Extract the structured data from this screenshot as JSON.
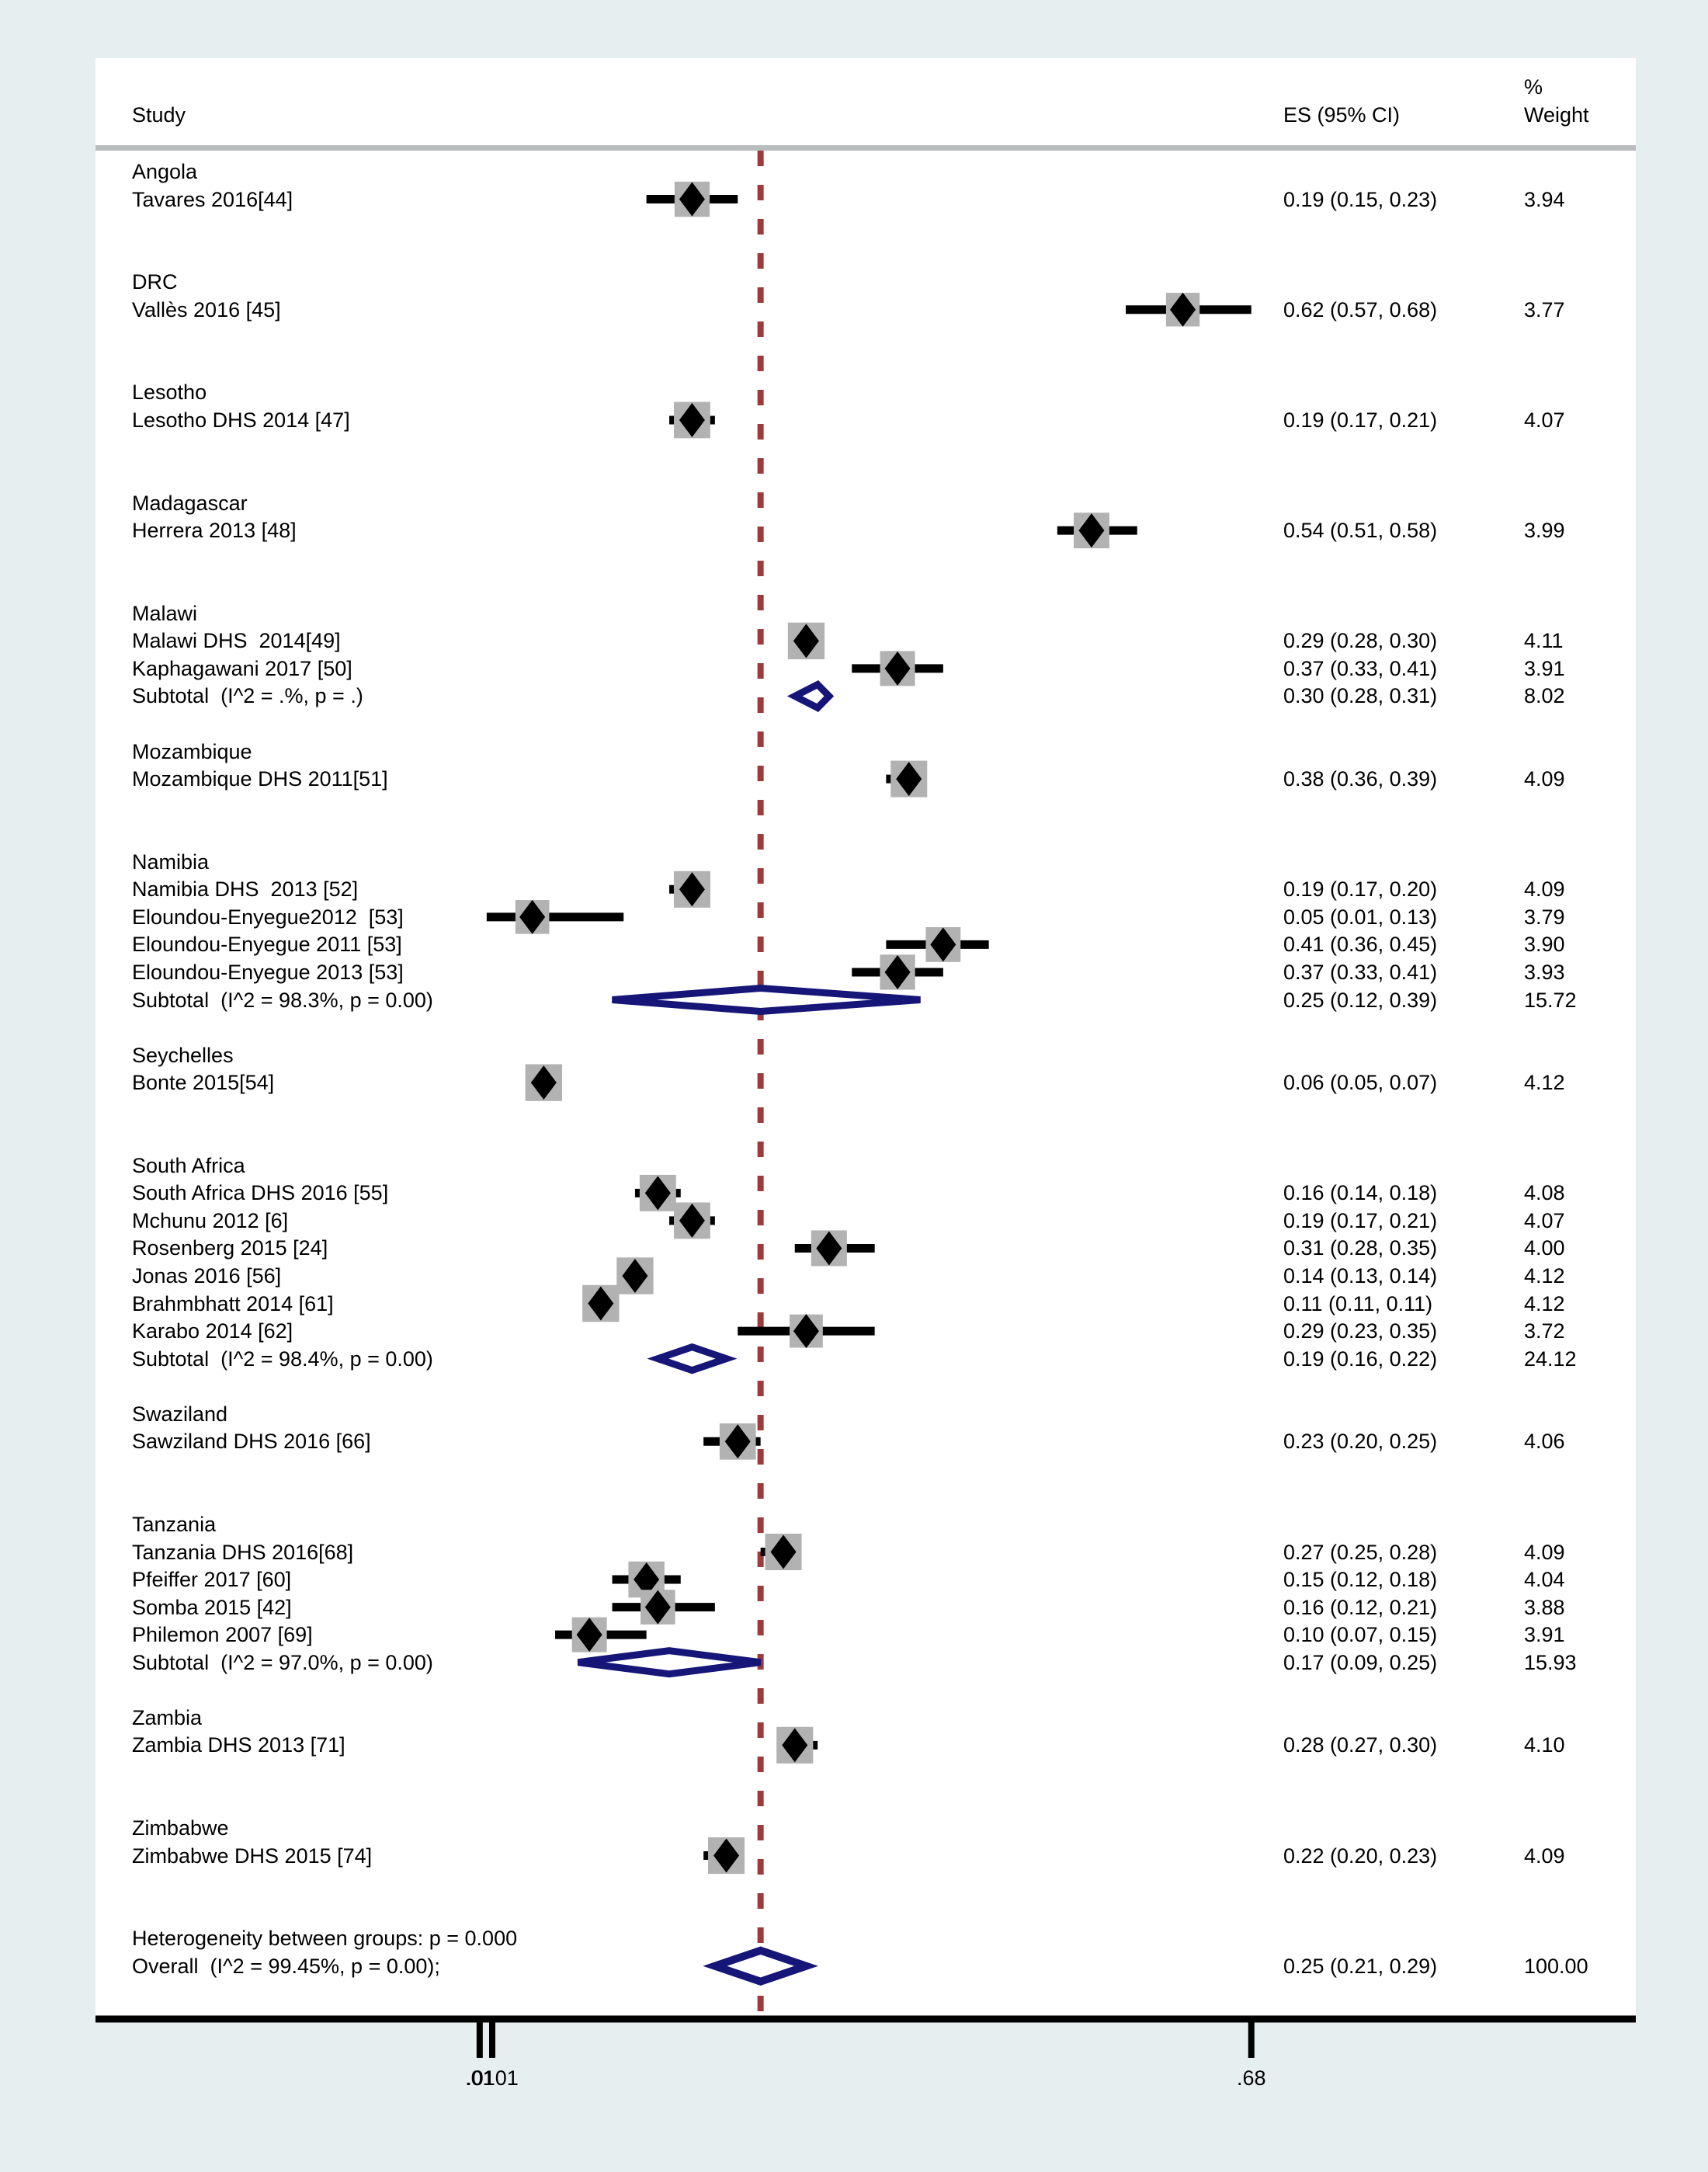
{
  "header": {
    "study": "Study",
    "es": "ES (95% CI)",
    "weight_pct": "%",
    "weight": "Weight"
  },
  "axis": {
    "ticks": [
      {
        "label": ".01",
        "value": 0.01
      },
      {
        "label": ".0101",
        "value": 0.0101
      },
      {
        "label": ".68",
        "value": 0.68
      }
    ],
    "min": 0.0101,
    "max": 0.68,
    "null_line_value": 0.25
  },
  "footer": {
    "heterogeneity": "Heterogeneity between groups: p = 0.000"
  },
  "colors": {
    "background": "#e7eef0",
    "plot_background": "#ffffff",
    "divider_gray": "#b9bcbd",
    "weight_box_gray": "#b2b2b2",
    "marker_black": "#000000",
    "pooled_navy": "#161678",
    "null_line_maroon": "#9d3b3b"
  },
  "chart_data": {
    "type": "forest",
    "title": "",
    "es_column_header": "ES (95% CI)",
    "weight_column_header": "% Weight",
    "groups": [
      {
        "name": "Angola",
        "studies": [
          {
            "label": "Tavares 2016[44]",
            "es": 0.19,
            "lo": 0.15,
            "hi": 0.23,
            "weight": 3.94,
            "es_text": "0.19 (0.15, 0.23)",
            "weight_text": "3.94"
          }
        ]
      },
      {
        "name": "DRC",
        "studies": [
          {
            "label": "Vallès 2016 [45]",
            "es": 0.62,
            "lo": 0.57,
            "hi": 0.68,
            "weight": 3.77,
            "es_text": "0.62 (0.57, 0.68)",
            "weight_text": "3.77"
          }
        ]
      },
      {
        "name": "Lesotho",
        "studies": [
          {
            "label": "Lesotho DHS 2014 [47]",
            "es": 0.19,
            "lo": 0.17,
            "hi": 0.21,
            "weight": 4.07,
            "es_text": "0.19 (0.17, 0.21)",
            "weight_text": "4.07"
          }
        ]
      },
      {
        "name": "Madagascar",
        "studies": [
          {
            "label": "Herrera 2013 [48]",
            "es": 0.54,
            "lo": 0.51,
            "hi": 0.58,
            "weight": 3.99,
            "es_text": "0.54 (0.51, 0.58)",
            "weight_text": "3.99"
          }
        ]
      },
      {
        "name": "Malawi",
        "studies": [
          {
            "label": "Malawi DHS  2014[49]",
            "es": 0.29,
            "lo": 0.28,
            "hi": 0.3,
            "weight": 4.11,
            "es_text": "0.29 (0.28, 0.30)",
            "weight_text": "4.11"
          },
          {
            "label": "Kaphagawani 2017 [50]",
            "es": 0.37,
            "lo": 0.33,
            "hi": 0.41,
            "weight": 3.91,
            "es_text": "0.37 (0.33, 0.41)",
            "weight_text": "3.91"
          }
        ],
        "subtotal": {
          "label": "Subtotal  (I^2 = .%, p = .)",
          "es": 0.3,
          "lo": 0.28,
          "hi": 0.31,
          "es_text": "0.30 (0.28, 0.31)",
          "weight_text": "8.02"
        }
      },
      {
        "name": "Mozambique",
        "studies": [
          {
            "label": "Mozambique DHS 2011[51]",
            "es": 0.38,
            "lo": 0.36,
            "hi": 0.39,
            "weight": 4.09,
            "es_text": "0.38 (0.36, 0.39)",
            "weight_text": "4.09"
          }
        ]
      },
      {
        "name": "Namibia",
        "studies": [
          {
            "label": "Namibia DHS  2013 [52]",
            "es": 0.19,
            "lo": 0.17,
            "hi": 0.2,
            "weight": 4.09,
            "es_text": "0.19 (0.17, 0.20)",
            "weight_text": "4.09"
          },
          {
            "label": "Eloundou-Enyegue2012  [53]",
            "es": 0.05,
            "lo": 0.01,
            "hi": 0.13,
            "weight": 3.79,
            "es_text": "0.05 (0.01, 0.13)",
            "weight_text": "3.79"
          },
          {
            "label": "Eloundou-Enyegue 2011 [53]",
            "es": 0.41,
            "lo": 0.36,
            "hi": 0.45,
            "weight": 3.9,
            "es_text": "0.41 (0.36, 0.45)",
            "weight_text": "3.90"
          },
          {
            "label": "Eloundou-Enyegue 2013 [53]",
            "es": 0.37,
            "lo": 0.33,
            "hi": 0.41,
            "weight": 3.93,
            "es_text": "0.37 (0.33, 0.41)",
            "weight_text": "3.93"
          }
        ],
        "subtotal": {
          "label": "Subtotal  (I^2 = 98.3%, p = 0.00)",
          "es": 0.25,
          "lo": 0.12,
          "hi": 0.39,
          "es_text": "0.25 (0.12, 0.39)",
          "weight_text": "15.72"
        }
      },
      {
        "name": "Seychelles",
        "studies": [
          {
            "label": "Bonte 2015[54]",
            "es": 0.06,
            "lo": 0.05,
            "hi": 0.07,
            "weight": 4.12,
            "es_text": "0.06 (0.05, 0.07)",
            "weight_text": "4.12"
          }
        ]
      },
      {
        "name": "South Africa",
        "studies": [
          {
            "label": "South Africa DHS 2016 [55]",
            "es": 0.16,
            "lo": 0.14,
            "hi": 0.18,
            "weight": 4.08,
            "es_text": "0.16 (0.14, 0.18)",
            "weight_text": "4.08"
          },
          {
            "label": "Mchunu 2012 [6]",
            "es": 0.19,
            "lo": 0.17,
            "hi": 0.21,
            "weight": 4.07,
            "es_text": "0.19 (0.17, 0.21)",
            "weight_text": "4.07"
          },
          {
            "label": "Rosenberg 2015 [24]",
            "es": 0.31,
            "lo": 0.28,
            "hi": 0.35,
            "weight": 4.0,
            "es_text": "0.31 (0.28, 0.35)",
            "weight_text": "4.00"
          },
          {
            "label": "Jonas 2016 [56]",
            "es": 0.14,
            "lo": 0.13,
            "hi": 0.14,
            "weight": 4.12,
            "es_text": "0.14 (0.13, 0.14)",
            "weight_text": "4.12"
          },
          {
            "label": "Brahmbhatt 2014 [61]",
            "es": 0.11,
            "lo": 0.11,
            "hi": 0.11,
            "weight": 4.12,
            "es_text": "0.11 (0.11, 0.11)",
            "weight_text": "4.12"
          },
          {
            "label": "Karabo 2014 [62]",
            "es": 0.29,
            "lo": 0.23,
            "hi": 0.35,
            "weight": 3.72,
            "es_text": "0.29 (0.23, 0.35)",
            "weight_text": "3.72"
          }
        ],
        "subtotal": {
          "label": "Subtotal  (I^2 = 98.4%, p = 0.00)",
          "es": 0.19,
          "lo": 0.16,
          "hi": 0.22,
          "es_text": "0.19 (0.16, 0.22)",
          "weight_text": "24.12"
        }
      },
      {
        "name": "Swaziland",
        "studies": [
          {
            "label": "Sawziland DHS 2016 [66]",
            "es": 0.23,
            "lo": 0.2,
            "hi": 0.25,
            "weight": 4.06,
            "es_text": "0.23 (0.20, 0.25)",
            "weight_text": "4.06"
          }
        ]
      },
      {
        "name": "Tanzania",
        "studies": [
          {
            "label": "Tanzania DHS 2016[68]",
            "es": 0.27,
            "lo": 0.25,
            "hi": 0.28,
            "weight": 4.09,
            "es_text": "0.27 (0.25, 0.28)",
            "weight_text": "4.09"
          },
          {
            "label": "Pfeiffer 2017 [60]",
            "es": 0.15,
            "lo": 0.12,
            "hi": 0.18,
            "weight": 4.04,
            "es_text": "0.15 (0.12, 0.18)",
            "weight_text": "4.04"
          },
          {
            "label": "Somba 2015 [42]",
            "es": 0.16,
            "lo": 0.12,
            "hi": 0.21,
            "weight": 3.88,
            "es_text": "0.16 (0.12, 0.21)",
            "weight_text": "3.88"
          },
          {
            "label": "Philemon 2007 [69]",
            "es": 0.1,
            "lo": 0.07,
            "hi": 0.15,
            "weight": 3.91,
            "es_text": "0.10 (0.07, 0.15)",
            "weight_text": "3.91"
          }
        ],
        "subtotal": {
          "label": "Subtotal  (I^2 = 97.0%, p = 0.00)",
          "es": 0.17,
          "lo": 0.09,
          "hi": 0.25,
          "es_text": "0.17 (0.09, 0.25)",
          "weight_text": "15.93"
        }
      },
      {
        "name": "Zambia",
        "studies": [
          {
            "label": "Zambia DHS 2013 [71]",
            "es": 0.28,
            "lo": 0.27,
            "hi": 0.3,
            "weight": 4.1,
            "es_text": "0.28 (0.27, 0.30)",
            "weight_text": "4.10"
          }
        ]
      },
      {
        "name": "Zimbabwe",
        "studies": [
          {
            "label": "Zimbabwe DHS 2015 [74]",
            "es": 0.22,
            "lo": 0.2,
            "hi": 0.23,
            "weight": 4.09,
            "es_text": "0.22 (0.20, 0.23)",
            "weight_text": "4.09"
          }
        ]
      }
    ],
    "overall": {
      "label": "Overall  (I^2 = 99.45%, p = 0.00);",
      "es": 0.25,
      "lo": 0.21,
      "hi": 0.29,
      "es_text": "0.25 (0.21, 0.29)",
      "weight_text": "100.00"
    }
  }
}
